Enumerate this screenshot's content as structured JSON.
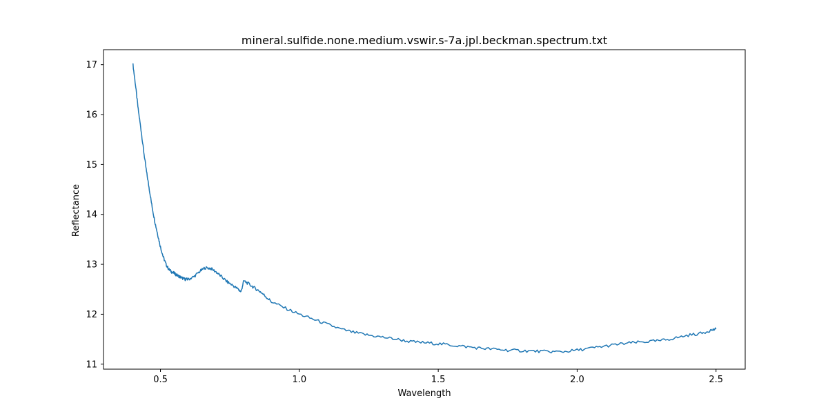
{
  "chart_data": {
    "type": "line",
    "title": "mineral.sulfide.none.medium.vswir.s-7a.jpl.beckman.spectrum.txt",
    "xlabel": "Wavelength",
    "ylabel": "Reflectance",
    "xlim": [
      0.295,
      2.605
    ],
    "ylim": [
      10.9,
      17.3
    ],
    "xticks": [
      0.5,
      1.0,
      1.5,
      2.0,
      2.5
    ],
    "xtick_labels": [
      "0.5",
      "1.0",
      "1.5",
      "2.0",
      "2.5"
    ],
    "yticks": [
      11,
      12,
      13,
      14,
      15,
      16,
      17
    ],
    "ytick_labels": [
      "11",
      "12",
      "13",
      "14",
      "15",
      "16",
      "17"
    ],
    "grid": false,
    "line_color": "#1f77b4",
    "series": [
      {
        "x": [
          0.4,
          0.41,
          0.42,
          0.43,
          0.44,
          0.45,
          0.46,
          0.47,
          0.48,
          0.49,
          0.5,
          0.51,
          0.52,
          0.53,
          0.54,
          0.55,
          0.56,
          0.57,
          0.58,
          0.59,
          0.6,
          0.62,
          0.64,
          0.66,
          0.68,
          0.7,
          0.72,
          0.74,
          0.76,
          0.78,
          0.79,
          0.8,
          0.82,
          0.84,
          0.86,
          0.88,
          0.9,
          0.95,
          1.0,
          1.05,
          1.1,
          1.15,
          1.2,
          1.25,
          1.3,
          1.35,
          1.4,
          1.45,
          1.5,
          1.55,
          1.6,
          1.65,
          1.7,
          1.75,
          1.8,
          1.85,
          1.9,
          1.95,
          2.0,
          2.05,
          2.1,
          2.15,
          2.2,
          2.25,
          2.3,
          2.35,
          2.4,
          2.45,
          2.48,
          2.5
        ],
        "y": [
          17.05,
          16.6,
          16.1,
          15.7,
          15.25,
          14.85,
          14.5,
          14.15,
          13.85,
          13.6,
          13.35,
          13.15,
          13.0,
          12.9,
          12.85,
          12.82,
          12.78,
          12.75,
          12.72,
          12.7,
          12.7,
          12.75,
          12.85,
          12.93,
          12.92,
          12.85,
          12.75,
          12.65,
          12.58,
          12.5,
          12.45,
          12.67,
          12.6,
          12.52,
          12.45,
          12.35,
          12.25,
          12.12,
          12.0,
          11.9,
          11.8,
          11.7,
          11.63,
          11.58,
          11.54,
          11.5,
          11.45,
          11.43,
          11.41,
          11.38,
          11.35,
          11.32,
          11.3,
          11.28,
          11.27,
          11.26,
          11.25,
          11.25,
          11.28,
          11.32,
          11.36,
          11.4,
          11.43,
          11.45,
          11.47,
          11.52,
          11.58,
          11.62,
          11.68,
          11.7
        ]
      }
    ]
  }
}
